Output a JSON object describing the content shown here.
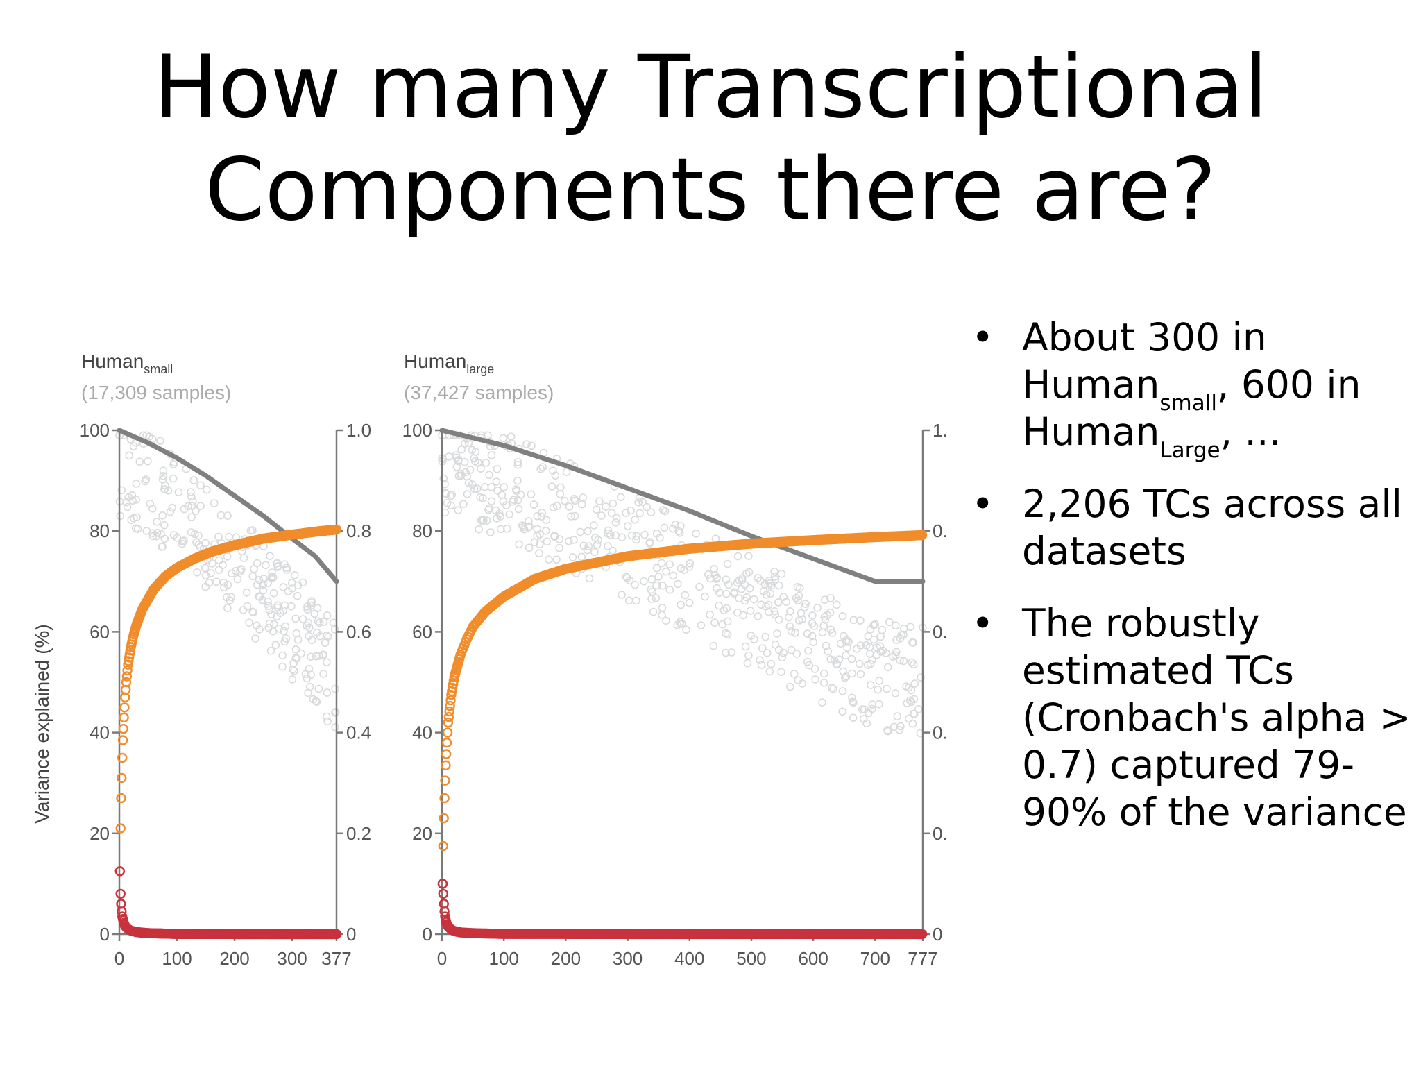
{
  "title": {
    "line1": "How many Transcriptional",
    "line2": "Components there are?"
  },
  "bullets": [
    {
      "parts": [
        {
          "t": "About 300 in Human"
        },
        {
          "t": "small",
          "sub": true
        },
        {
          "t": ", 600 in Human"
        },
        {
          "t": "Large",
          "sub": true
        },
        {
          "t": ", ..."
        }
      ]
    },
    {
      "parts": [
        {
          "t": "2,206 TCs across all datasets"
        }
      ]
    },
    {
      "parts": [
        {
          "t": "The robustly estimated TCs (Cronbach's alpha > 0.7) captured 79-90% of the variance"
        }
      ]
    }
  ],
  "colors": {
    "cumulative_line": "#f08c2a",
    "per_component": "#c8323c",
    "reference_line": "#808080",
    "scatter": "#d8dadc",
    "axis": "#7a7a7a"
  },
  "chart_data": [
    {
      "type": "scatter",
      "title": "Human",
      "title_subscript": "small",
      "subtitle": "(17,309 samples)",
      "ylabel": "Variance explained (%)",
      "xlim": [
        0,
        377
      ],
      "ylim": [
        0,
        100
      ],
      "y2lim": [
        0,
        1.0
      ],
      "xticks": [
        "0",
        "100",
        "200",
        "300",
        "377"
      ],
      "xtick_values": [
        0,
        100,
        200,
        300,
        377
      ],
      "yticks": [
        "0",
        "20",
        "40",
        "60",
        "80",
        "100"
      ],
      "y2ticks": [
        "0",
        "0.2",
        "0.4",
        "0.6",
        "0.8",
        "1.0"
      ],
      "series": [
        {
          "kind": "cumulative",
          "x": [
            1,
            2,
            3,
            4,
            5,
            6,
            8,
            10,
            12,
            15,
            20,
            25,
            30,
            40,
            50,
            60,
            80,
            100,
            130,
            160,
            200,
            250,
            300,
            350,
            377
          ],
          "values": [
            12.5,
            21,
            27,
            31,
            35,
            38.5,
            43,
            47,
            50,
            53.5,
            57,
            59.5,
            61.5,
            64.5,
            66.5,
            68.5,
            71,
            72.7,
            74.5,
            75.9,
            77.2,
            78.5,
            79.3,
            80,
            80.3
          ]
        },
        {
          "kind": "per_component",
          "x": [
            1,
            2,
            3,
            4,
            5,
            6,
            8,
            10,
            15,
            20,
            30,
            50,
            100,
            200,
            377
          ],
          "values": [
            12.5,
            8,
            6,
            4.5,
            3.5,
            3,
            2.2,
            1.6,
            1,
            0.7,
            0.4,
            0.2,
            0.05,
            0.02,
            0.01
          ]
        },
        {
          "kind": "reference",
          "x": [
            0,
            50,
            100,
            150,
            200,
            250,
            300,
            340,
            377
          ],
          "values": [
            100,
            97.5,
            94.5,
            91,
            87,
            83,
            78.5,
            75,
            70
          ]
        }
      ]
    },
    {
      "type": "scatter",
      "title": "Human",
      "title_subscript": "large",
      "subtitle": "(37,427 samples)",
      "ylabel": "",
      "xlim": [
        0,
        777
      ],
      "ylim": [
        0,
        100
      ],
      "y2lim": [
        0,
        1.0
      ],
      "xticks": [
        "0",
        "100",
        "200",
        "300",
        "400",
        "500",
        "600",
        "700",
        "777"
      ],
      "xtick_values": [
        0,
        100,
        200,
        300,
        400,
        500,
        600,
        700,
        777
      ],
      "yticks": [
        "0",
        "20",
        "40",
        "60",
        "80",
        "100"
      ],
      "y2ticks": [
        "0",
        "0.",
        "0.",
        "0.",
        "0.",
        "1."
      ],
      "series": [
        {
          "kind": "cumulative",
          "x": [
            1,
            2,
            3,
            4,
            5,
            6,
            8,
            10,
            15,
            20,
            30,
            40,
            50,
            70,
            100,
            150,
            200,
            300,
            400,
            500,
            600,
            700,
            777
          ],
          "values": [
            10,
            17.5,
            23,
            27,
            30.5,
            33.5,
            38,
            42,
            47.5,
            51,
            55.5,
            58.5,
            61,
            64,
            67,
            70.5,
            72.5,
            75,
            76.5,
            77.5,
            78.2,
            78.8,
            79.2
          ]
        },
        {
          "kind": "per_component",
          "x": [
            1,
            2,
            3,
            4,
            5,
            6,
            8,
            10,
            15,
            20,
            30,
            50,
            100,
            300,
            777
          ],
          "values": [
            10,
            8,
            6,
            4.5,
            3.5,
            2.8,
            2,
            1.5,
            0.9,
            0.6,
            0.35,
            0.2,
            0.05,
            0.02,
            0.01
          ]
        },
        {
          "kind": "reference",
          "x": [
            0,
            100,
            200,
            300,
            400,
            500,
            600,
            700,
            777
          ],
          "values": [
            100,
            97,
            93,
            88.5,
            84,
            79,
            74.5,
            70,
            70
          ]
        }
      ]
    }
  ]
}
